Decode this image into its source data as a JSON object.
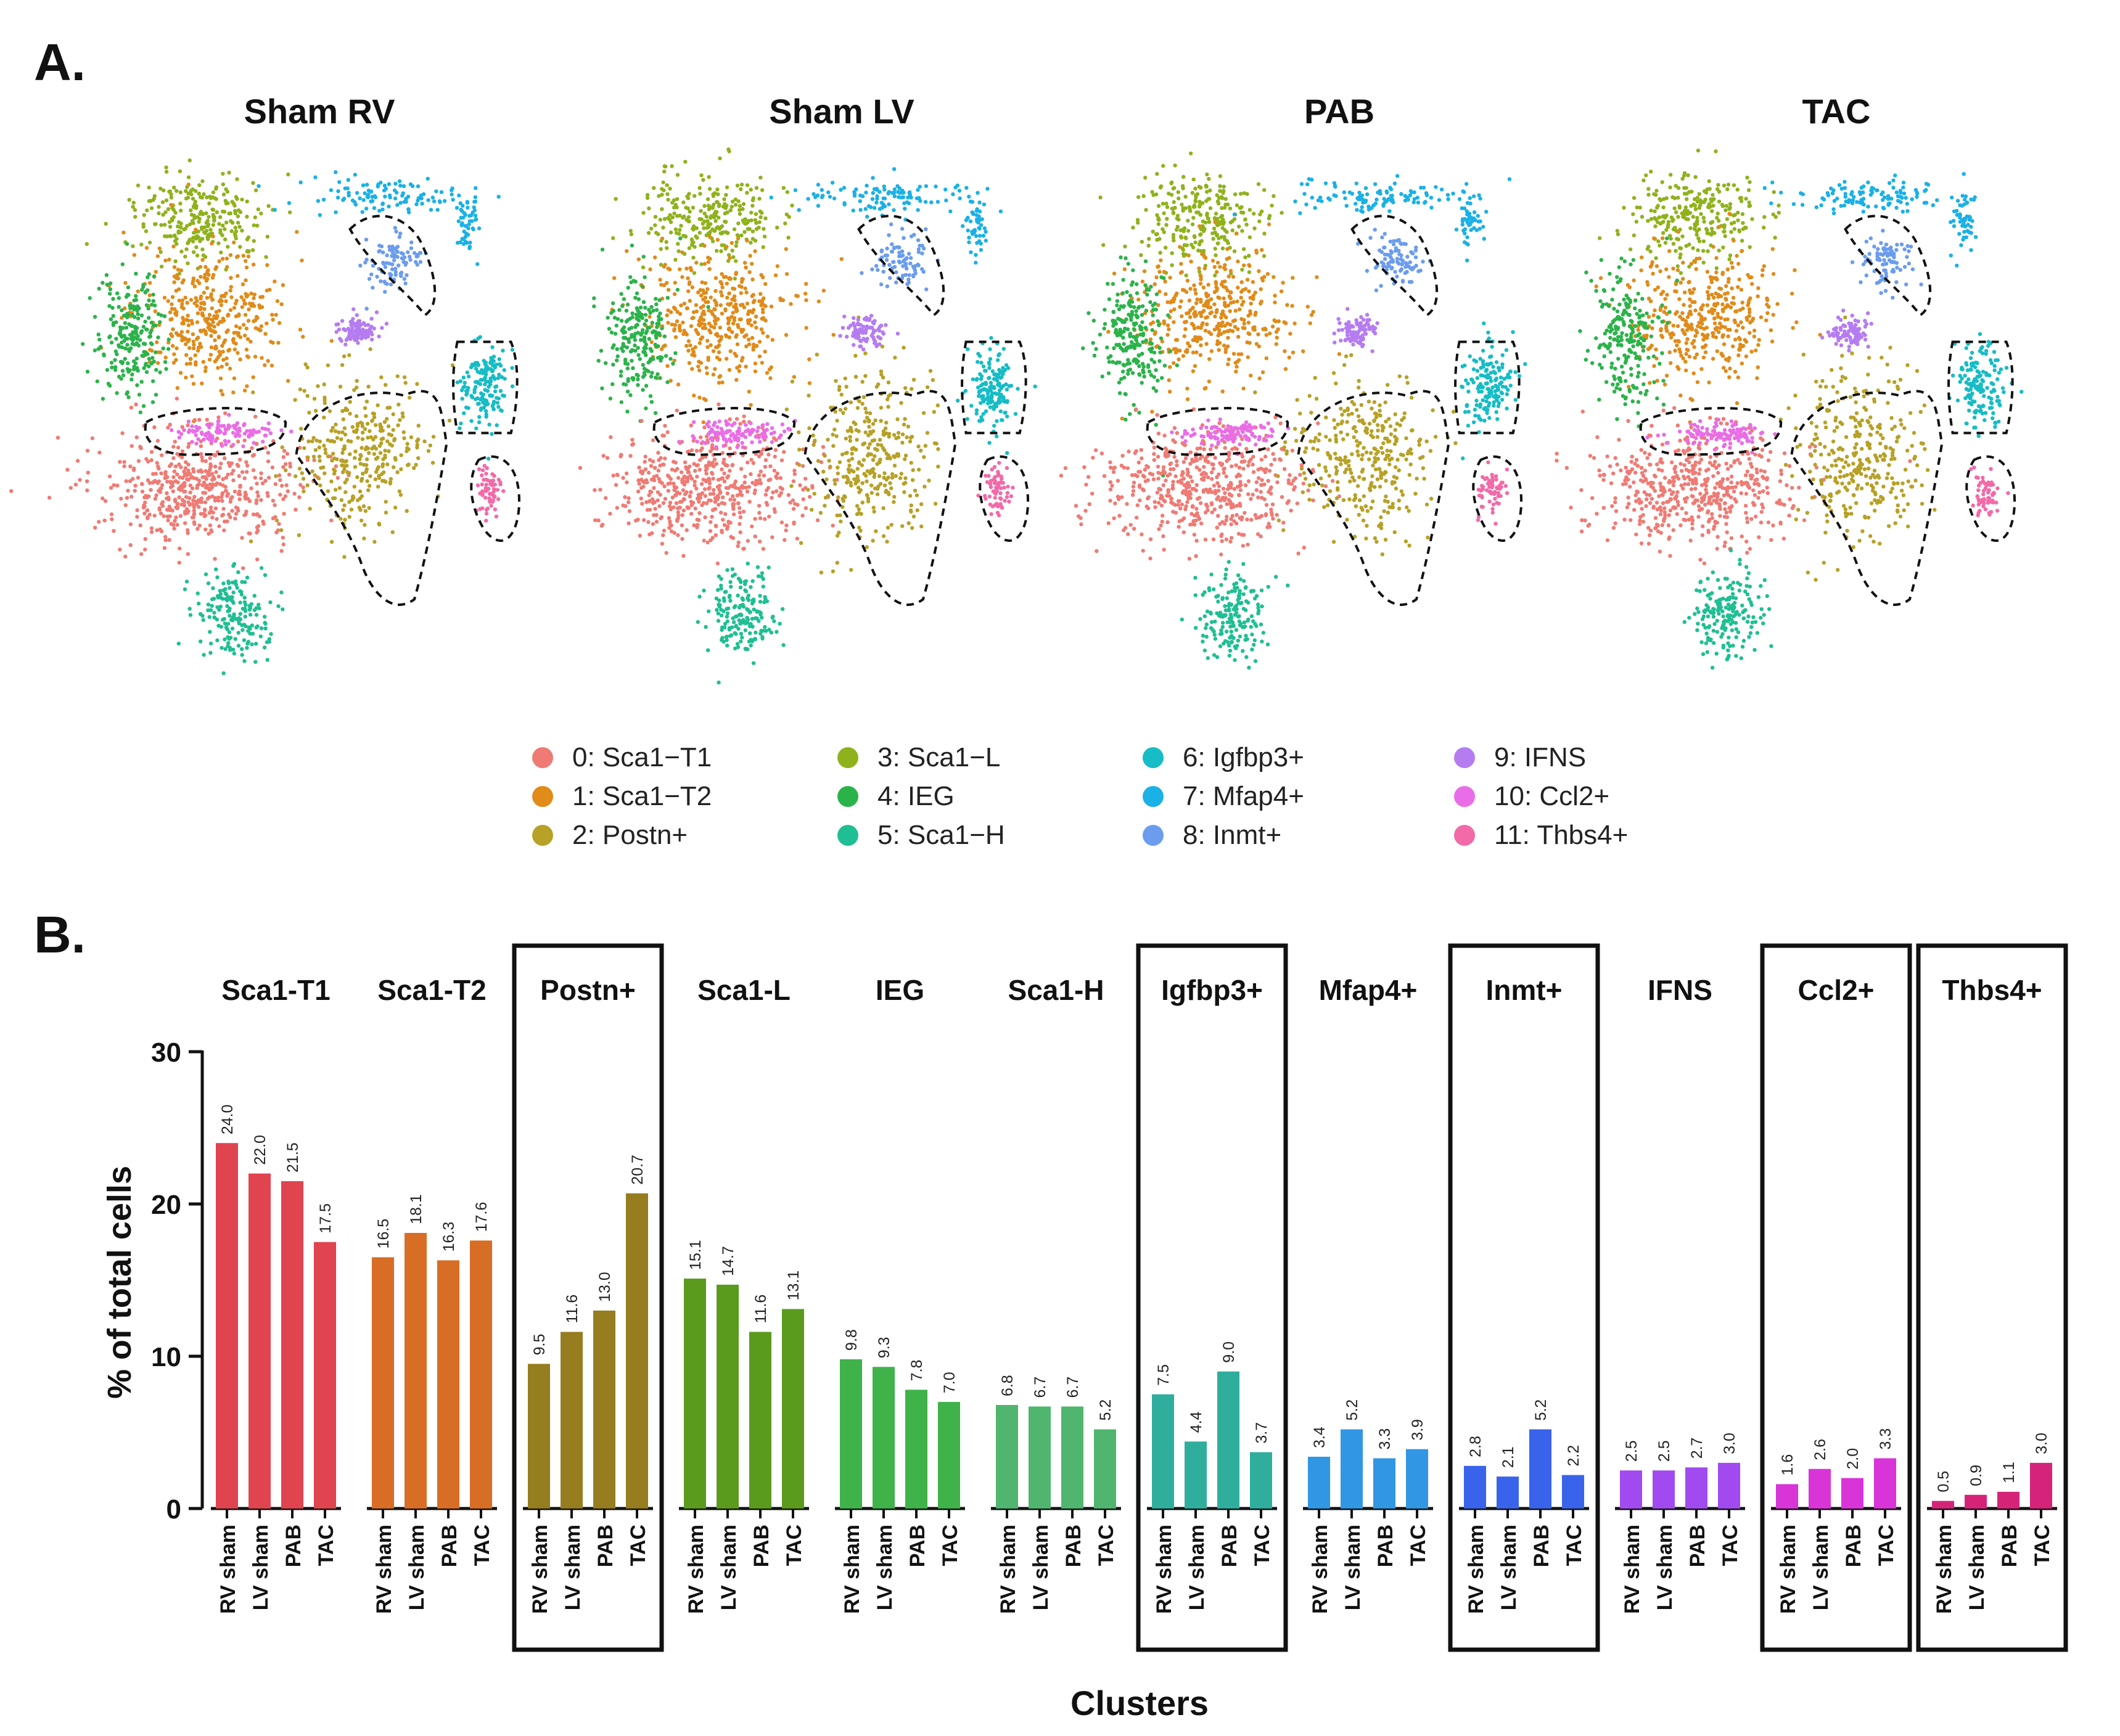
{
  "panel_a": {
    "label": "A.",
    "titles": [
      "Sham RV",
      "Sham LV",
      "PAB",
      "TAC"
    ],
    "legend": [
      {
        "text": "0: Sca1−T1",
        "color": "#ef7b74"
      },
      {
        "text": "1: Sca1−T2",
        "color": "#e08b1a"
      },
      {
        "text": "2: Postn+",
        "color": "#b7a126"
      },
      {
        "text": "3: Sca1−L",
        "color": "#8fb21c"
      },
      {
        "text": "4: IEG",
        "color": "#2bb34a"
      },
      {
        "text": "5: Sca1−H",
        "color": "#1fbf93"
      },
      {
        "text": "6: Igfbp3+",
        "color": "#16bcc6"
      },
      {
        "text": "7: Mfap4+",
        "color": "#1ab1e6"
      },
      {
        "text": "8: Inmt+",
        "color": "#6b9cee"
      },
      {
        "text": "9: IFNS",
        "color": "#b57cf2"
      },
      {
        "text": "10: Ccl2+",
        "color": "#e96de6"
      },
      {
        "text": "11: Thbs4+",
        "color": "#f26aa8"
      }
    ]
  },
  "panel_b": {
    "label": "B."
  },
  "chart_data": {
    "type": "bar",
    "title": "",
    "xlabel": "Clusters",
    "ylabel": "% of total cells",
    "ylim": [
      0,
      30
    ],
    "yticks": [
      0,
      10,
      20,
      30
    ],
    "conditions": [
      "RV sham",
      "LV sham",
      "PAB",
      "TAC"
    ],
    "groups": [
      {
        "name": "Sca1-T1",
        "color": "#e0444e",
        "values": [
          24.0,
          22.0,
          21.5,
          17.5
        ],
        "labels": [
          "24.0",
          "22.0",
          "21.5",
          "17.5"
        ],
        "boxed": false
      },
      {
        "name": "Sca1-T2",
        "color": "#d86d25",
        "values": [
          16.5,
          18.1,
          16.3,
          17.6
        ],
        "labels": [
          "16.5",
          "18.1",
          "16.3",
          "17.6"
        ],
        "boxed": false
      },
      {
        "name": "Postn+",
        "color": "#957d20",
        "values": [
          9.5,
          11.6,
          13.0,
          20.7
        ],
        "labels": [
          "9.5",
          "11.6",
          "13.0",
          "20.7"
        ],
        "boxed": true
      },
      {
        "name": "Sca1-L",
        "color": "#5a9b1e",
        "values": [
          15.1,
          14.7,
          11.6,
          13.1
        ],
        "labels": [
          "15.1",
          "14.7",
          "11.6",
          "13.1"
        ],
        "boxed": false
      },
      {
        "name": "IEG",
        "color": "#3fb24a",
        "values": [
          9.8,
          9.3,
          7.8,
          7.0
        ],
        "labels": [
          "9.8",
          "9.3",
          "7.8",
          "7.0"
        ],
        "boxed": false
      },
      {
        "name": "Sca1-H",
        "color": "#4fb56f",
        "values": [
          6.8,
          6.7,
          6.7,
          5.2
        ],
        "labels": [
          "6.8",
          "6.7",
          "6.7",
          "5.2"
        ],
        "boxed": false
      },
      {
        "name": "Igfbp3+",
        "color": "#2fae9e",
        "values": [
          7.5,
          4.4,
          9.0,
          3.7
        ],
        "labels": [
          "7.5",
          "4.4",
          "9.0",
          "3.7"
        ],
        "boxed": true
      },
      {
        "name": "Mfap4+",
        "color": "#3196e4",
        "values": [
          3.4,
          5.2,
          3.3,
          3.9
        ],
        "labels": [
          "3.4",
          "5.2",
          "3.3",
          "3.9"
        ],
        "boxed": false
      },
      {
        "name": "Inmt+",
        "color": "#3a63ec",
        "values": [
          2.8,
          2.1,
          5.2,
          2.2
        ],
        "labels": [
          "2.8",
          "2.1",
          "5.2",
          "2.2"
        ],
        "boxed": true
      },
      {
        "name": "IFNS",
        "color": "#a04af0",
        "values": [
          2.5,
          2.5,
          2.7,
          3.0
        ],
        "labels": [
          "2.5",
          "2.5",
          "2.7",
          "3.0"
        ],
        "boxed": false
      },
      {
        "name": "Ccl2+",
        "color": "#d834d8",
        "values": [
          1.6,
          2.6,
          2.0,
          3.3
        ],
        "labels": [
          "1.6",
          "2.6",
          "2.0",
          "3.3"
        ],
        "boxed": true
      },
      {
        "name": "Thbs4+",
        "color": "#d6237a",
        "values": [
          0.5,
          0.9,
          1.1,
          3.0
        ],
        "labels": [
          "0.5",
          "0.9",
          "1.1",
          "3.0"
        ],
        "boxed": true
      }
    ]
  }
}
